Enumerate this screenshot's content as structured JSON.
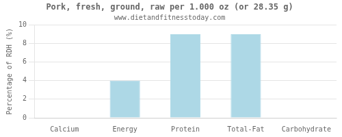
{
  "chart_data": {
    "type": "bar",
    "title": "Pork, fresh, ground, raw per 1.000 oz (or 28.35 g)",
    "subtitle": "www.dietandfitnesstoday.com",
    "categories": [
      "Calcium",
      "Energy",
      "Protein",
      "Total-Fat",
      "Carbohydrate"
    ],
    "values": [
      0,
      4.0,
      9.0,
      9.0,
      0
    ],
    "color": "#add8e6",
    "ylabel": "Percentage of RDH (%)",
    "ylim": [
      0,
      10
    ],
    "yticks": [
      0,
      2,
      4,
      6,
      8,
      10
    ],
    "grid": true
  }
}
